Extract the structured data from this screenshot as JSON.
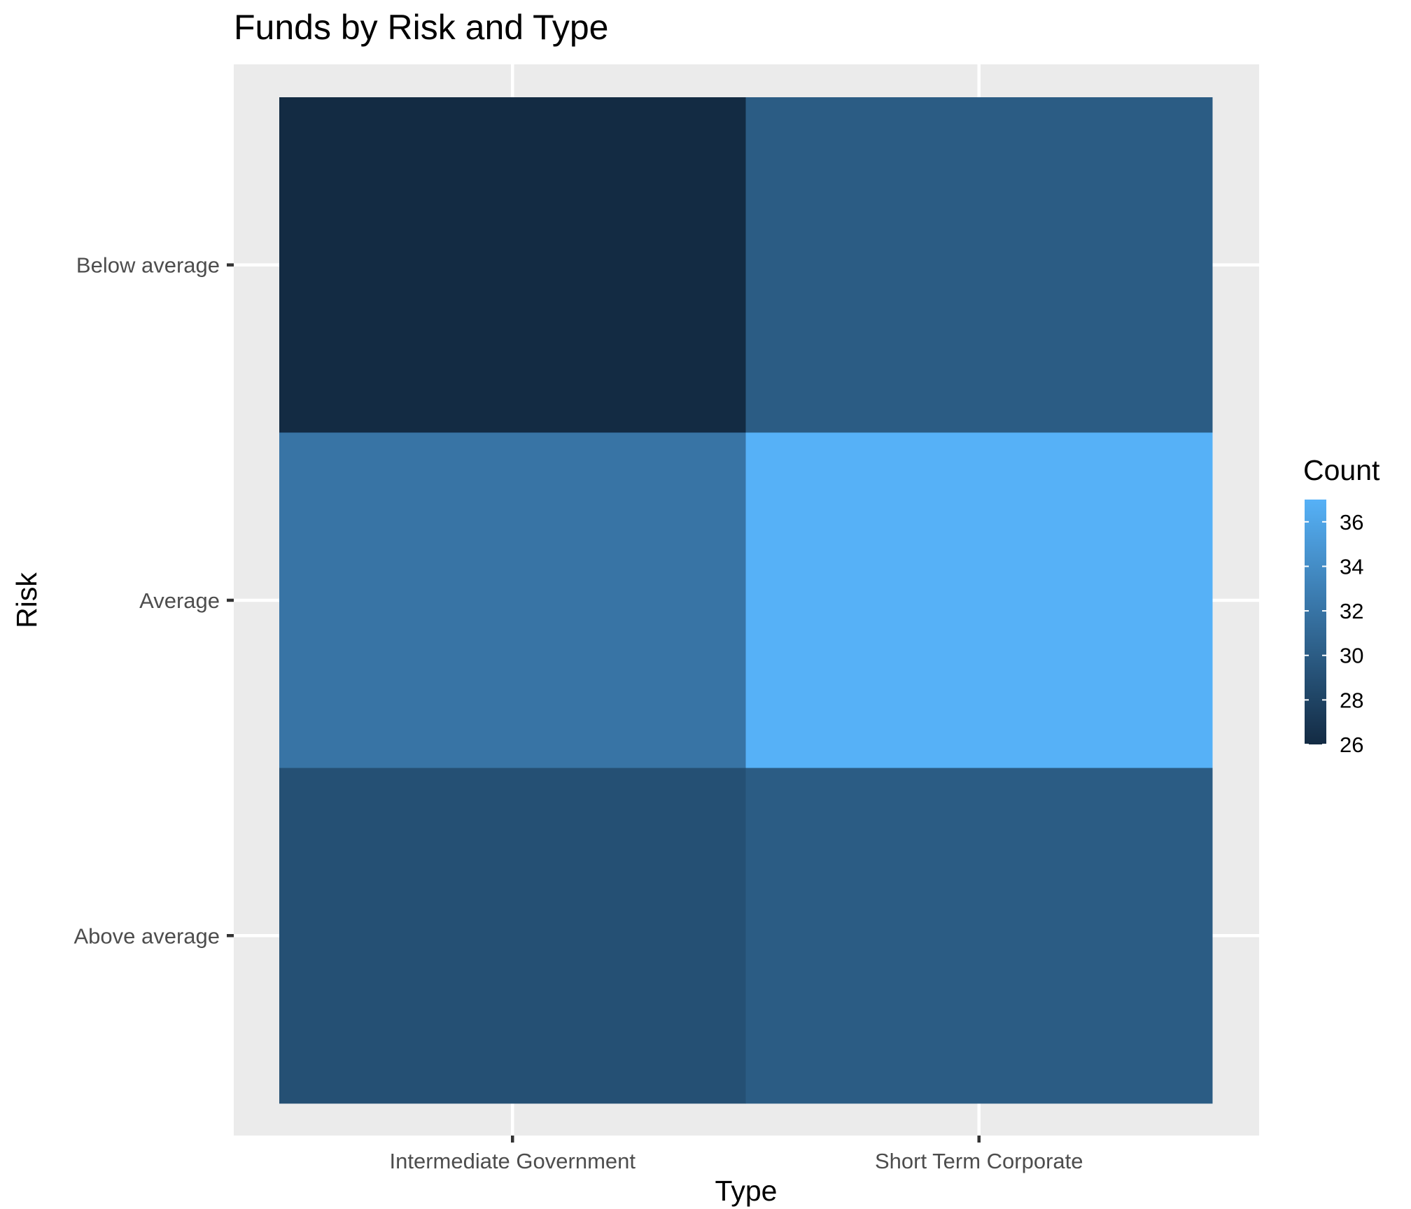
{
  "chart_data": {
    "type": "heatmap",
    "title": "Funds by Risk and Type",
    "xlabel": "Type",
    "ylabel": "Risk",
    "x_categories": [
      "Intermediate Government",
      "Short Term Corporate"
    ],
    "y_categories": [
      "Above average",
      "Average",
      "Below average"
    ],
    "cells": [
      {
        "x": "Intermediate Government",
        "y": "Below average",
        "value": 26
      },
      {
        "x": "Short Term Corporate",
        "y": "Below average",
        "value": 30
      },
      {
        "x": "Intermediate Government",
        "y": "Average",
        "value": 32
      },
      {
        "x": "Short Term Corporate",
        "y": "Average",
        "value": 37
      },
      {
        "x": "Intermediate Government",
        "y": "Above average",
        "value": 29
      },
      {
        "x": "Short Term Corporate",
        "y": "Above average",
        "value": 30
      }
    ],
    "legend": {
      "title": "Count",
      "ticks": [
        26,
        28,
        30,
        32,
        34,
        36
      ],
      "range": [
        26,
        37
      ],
      "low_color": "#132B43",
      "high_color": "#56B1F7",
      "placement": "right"
    },
    "grid": true
  }
}
